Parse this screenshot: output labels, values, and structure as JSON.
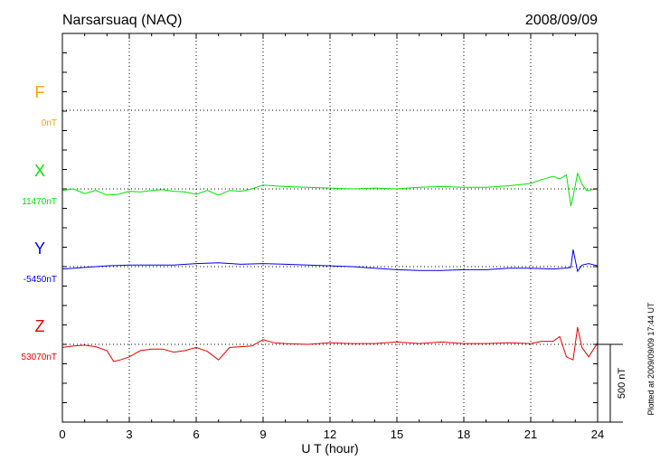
{
  "chart_data": {
    "type": "line",
    "title": "Narsarsuaq (NAQ)",
    "date": "2008/09/09",
    "xlabel": "U T (hour)",
    "x_ticks": [
      0,
      3,
      6,
      9,
      12,
      15,
      18,
      21,
      24
    ],
    "x_range": [
      0,
      24
    ],
    "grid": true,
    "scale_bar_label": "500 nT",
    "footer_note": "Plotted at 2009/09/09 17:44 UT",
    "series": [
      {
        "name": "F",
        "baseline_label": "0nT",
        "color": "#f0a800",
        "x": [],
        "y": []
      },
      {
        "name": "X",
        "baseline_label": "11470nT",
        "color": "#00e000",
        "x": [
          0,
          0.5,
          1,
          1.5,
          2,
          2.5,
          3,
          3.5,
          4,
          4.5,
          5,
          5.5,
          6,
          6.5,
          7,
          7.5,
          8,
          8.5,
          9,
          9.5,
          10,
          11,
          12,
          13,
          14,
          15,
          16,
          17,
          18,
          19,
          20,
          21,
          21.5,
          22,
          22.3,
          22.6,
          22.8,
          22.9,
          23.1,
          23.3,
          23.5,
          24
        ],
        "y": [
          -10,
          0,
          -30,
          -10,
          -40,
          -35,
          -15,
          -20,
          -10,
          -5,
          -15,
          -20,
          -35,
          -10,
          -40,
          -10,
          -15,
          0,
          25,
          20,
          15,
          10,
          5,
          0,
          5,
          0,
          10,
          15,
          10,
          10,
          20,
          35,
          60,
          80,
          65,
          90,
          -110,
          -50,
          100,
          30,
          -10,
          0
        ]
      },
      {
        "name": "Y",
        "baseline_label": "-5450nT",
        "color": "#0000e0",
        "x": [
          0,
          1,
          2,
          3,
          4,
          5,
          6,
          7,
          8,
          9,
          10,
          11,
          12,
          13,
          14,
          15,
          16,
          17,
          18,
          19,
          20,
          21,
          22,
          22.5,
          22.8,
          22.9,
          23.1,
          23.3,
          23.6,
          24
        ],
        "y": [
          -15,
          -5,
          5,
          10,
          10,
          10,
          20,
          25,
          15,
          20,
          15,
          10,
          5,
          0,
          -10,
          -20,
          -25,
          -25,
          -20,
          -20,
          -10,
          -10,
          -15,
          -10,
          -5,
          110,
          -30,
          10,
          20,
          5
        ]
      },
      {
        "name": "Z",
        "baseline_label": "53070nT",
        "color": "#e00000",
        "x": [
          0,
          0.5,
          1,
          1.5,
          2,
          2.3,
          2.6,
          3,
          3.5,
          4,
          4.5,
          5,
          5.5,
          6,
          6.5,
          7,
          7.5,
          8,
          8.5,
          9,
          9.5,
          10,
          11,
          12,
          13,
          14,
          15,
          16,
          17,
          18,
          19,
          20,
          21,
          21.5,
          22,
          22.3,
          22.6,
          22.9,
          23.1,
          23.3,
          23.6,
          24
        ],
        "y": [
          -20,
          -10,
          -5,
          -15,
          -40,
          -110,
          -100,
          -80,
          -40,
          -30,
          -30,
          -50,
          -40,
          -20,
          -45,
          -100,
          -20,
          -15,
          -10,
          30,
          10,
          5,
          0,
          10,
          5,
          5,
          15,
          5,
          15,
          5,
          5,
          10,
          5,
          20,
          20,
          50,
          -80,
          -100,
          110,
          -20,
          -80,
          10
        ]
      }
    ]
  }
}
